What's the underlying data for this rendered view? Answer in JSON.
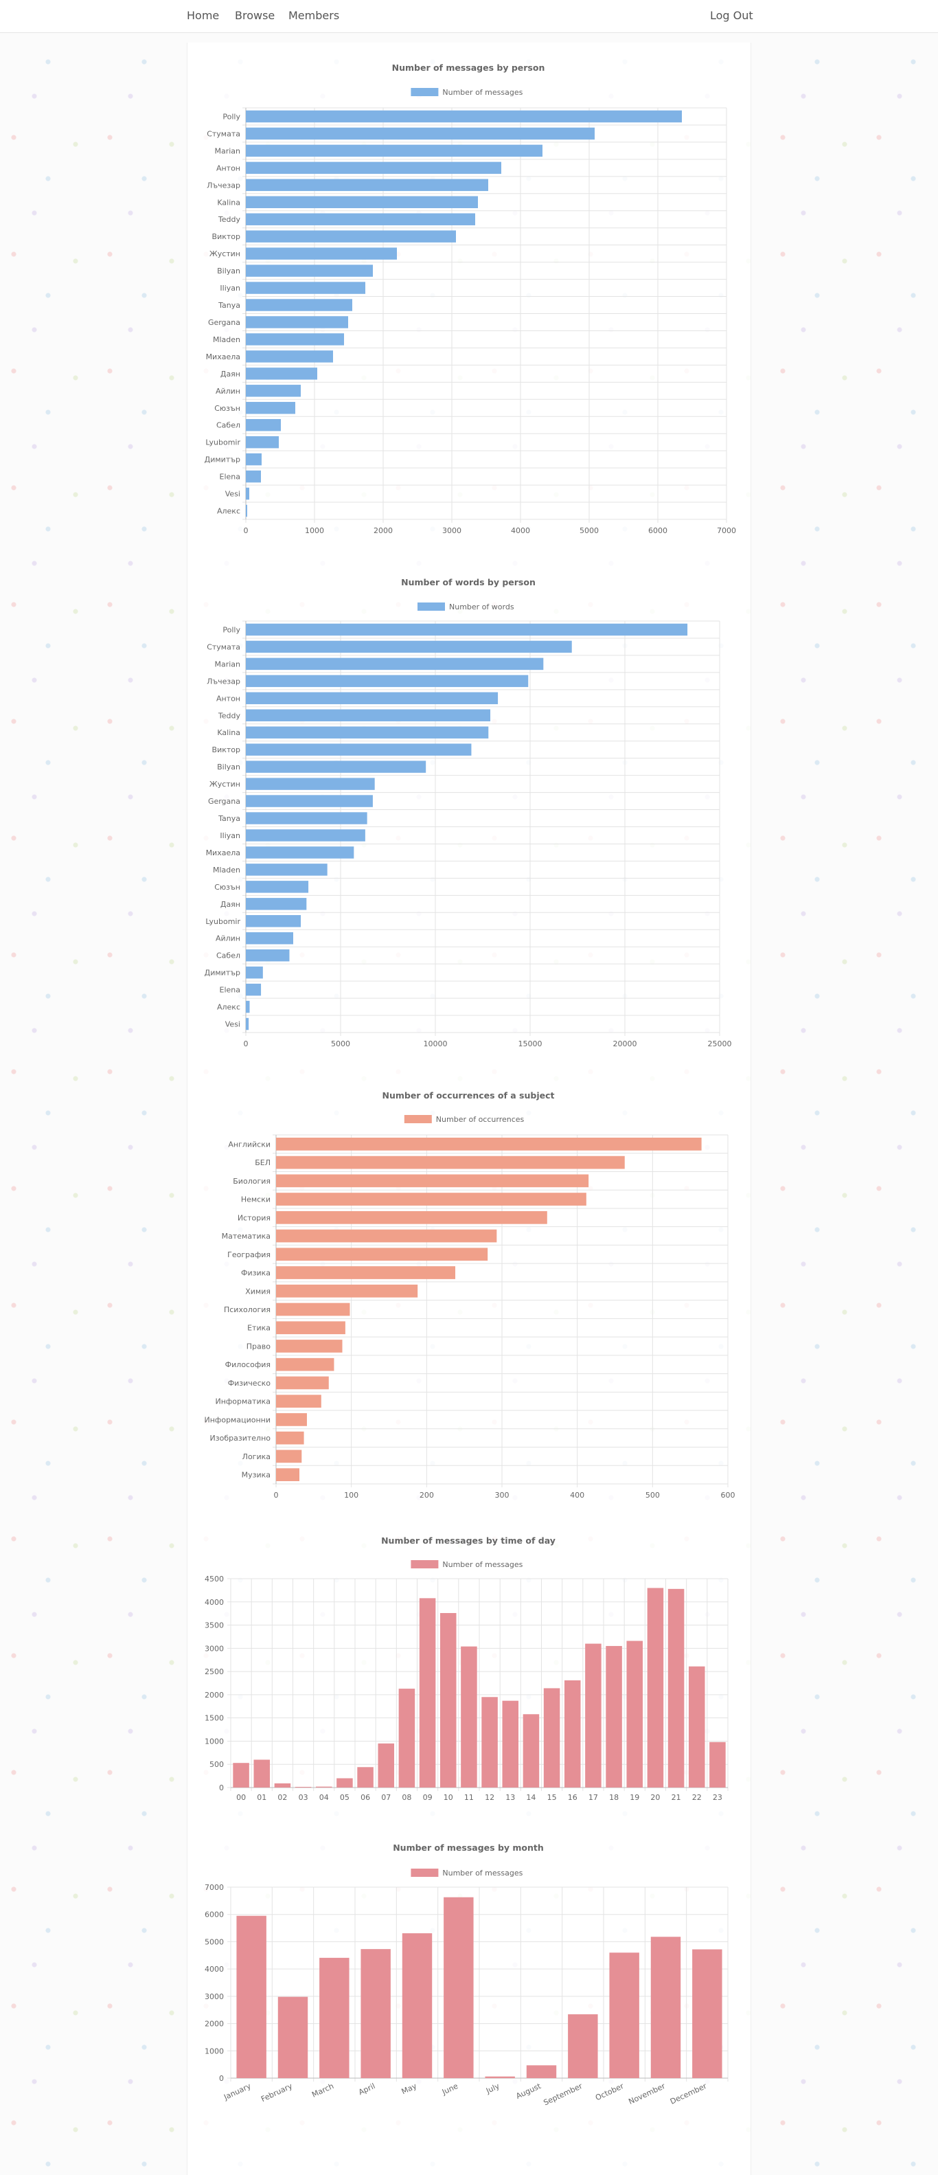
{
  "nav": {
    "home": "Home",
    "browse": "Browse",
    "members": "Members",
    "logout": "Log Out"
  },
  "colors": {
    "blue": "#7fb2e5",
    "salmon": "#f0a08a",
    "pink": "#e58f95"
  },
  "chart_data": [
    {
      "type": "bar",
      "orientation": "horizontal",
      "title": "Number of messages by person",
      "categories": [
        "Polly",
        "Стумата",
        "Marian",
        "Антон",
        "Лъчезар",
        "Kalina",
        "Teddy",
        "Виктор",
        "Жустин",
        "Bilyan",
        "Iliyan",
        "Tanya",
        "Gergana",
        "Mladen",
        "Михаела",
        "Даян",
        "Айлин",
        "Сюзън",
        "Сабел",
        "Lyubomir",
        "Димитър",
        "Elena",
        "Vesi",
        "Алекс"
      ],
      "series": [
        {
          "name": "Number of messages",
          "values": [
            6350,
            5080,
            4320,
            3720,
            3530,
            3380,
            3340,
            3060,
            2200,
            1850,
            1740,
            1550,
            1490,
            1430,
            1270,
            1040,
            800,
            720,
            510,
            480,
            230,
            220,
            50,
            20
          ]
        }
      ],
      "xlim": [
        0,
        7000
      ],
      "xticks": [
        "0",
        "1000",
        "2000",
        "3000",
        "4000",
        "5000",
        "6000",
        "7000"
      ],
      "color": "#7fb2e5"
    },
    {
      "type": "bar",
      "orientation": "horizontal",
      "title": "Number of words by person",
      "categories": [
        "Polly",
        "Стумата",
        "Marian",
        "Лъчезар",
        "Антон",
        "Teddy",
        "Kalina",
        "Виктор",
        "Bilyan",
        "Жустин",
        "Gergana",
        "Tanya",
        "Iliyan",
        "Михаела",
        "Mladen",
        "Сюзън",
        "Даян",
        "Lyubomir",
        "Айлин",
        "Сабел",
        "Димитър",
        "Elena",
        "Алекс",
        "Vesi"
      ],
      "series": [
        {
          "name": "Number of words",
          "values": [
            23300,
            17200,
            15700,
            14900,
            13300,
            12900,
            12800,
            11900,
            9500,
            6800,
            6700,
            6400,
            6300,
            5700,
            4300,
            3300,
            3200,
            2900,
            2500,
            2300,
            900,
            800,
            200,
            150
          ]
        }
      ],
      "xlim": [
        0,
        25000
      ],
      "xticks": [
        "0",
        "5000",
        "10000",
        "15000",
        "20000",
        "25000"
      ],
      "color": "#7fb2e5"
    },
    {
      "type": "bar",
      "orientation": "horizontal",
      "title": "Number of occurrences of a subject",
      "categories": [
        "Английски",
        "БЕЛ",
        "Биология",
        "Немски",
        "История",
        "Математика",
        "География",
        "Физика",
        "Химия",
        "Психология",
        "Етика",
        "Право",
        "Философия",
        "Физическо",
        "Информатика",
        "Информационни",
        "Изобразително",
        "Логика",
        "Музика"
      ],
      "series": [
        {
          "name": "Number of occurrences",
          "values": [
            565,
            463,
            415,
            412,
            360,
            293,
            281,
            238,
            188,
            98,
            92,
            88,
            77,
            70,
            60,
            41,
            37,
            34,
            31
          ]
        }
      ],
      "xlim": [
        0,
        600
      ],
      "xticks": [
        "0",
        "100",
        "200",
        "300",
        "400",
        "500",
        "600"
      ],
      "color": "#f0a08a"
    },
    {
      "type": "bar",
      "orientation": "vertical",
      "title": "Number of messages by time of day",
      "categories": [
        "00",
        "01",
        "02",
        "03",
        "04",
        "05",
        "06",
        "07",
        "08",
        "09",
        "10",
        "11",
        "12",
        "13",
        "14",
        "15",
        "16",
        "17",
        "18",
        "19",
        "20",
        "21",
        "22",
        "23"
      ],
      "series": [
        {
          "name": "Number of messages",
          "values": [
            530,
            600,
            90,
            10,
            20,
            200,
            440,
            950,
            2130,
            4080,
            3760,
            3040,
            1950,
            1870,
            1580,
            2140,
            2310,
            3100,
            3050,
            3160,
            4300,
            4280,
            2610,
            980
          ]
        }
      ],
      "ylim": [
        0,
        4500
      ],
      "yticks": [
        "0",
        "500",
        "1000",
        "1500",
        "2000",
        "2500",
        "3000",
        "3500",
        "4000",
        "4500"
      ],
      "color": "#e58f95"
    },
    {
      "type": "bar",
      "orientation": "vertical",
      "title": "Number of messages by month",
      "categories": [
        "January",
        "February",
        "March",
        "April",
        "May",
        "June",
        "July",
        "August",
        "September",
        "October",
        "November",
        "December"
      ],
      "series": [
        {
          "name": "Number of messages",
          "values": [
            5950,
            2980,
            4410,
            4730,
            5310,
            6630,
            60,
            470,
            2340,
            4600,
            5180,
            4720
          ]
        }
      ],
      "ylim": [
        0,
        7000
      ],
      "yticks": [
        "0",
        "1000",
        "2000",
        "3000",
        "4000",
        "5000",
        "6000",
        "7000"
      ],
      "color": "#e58f95"
    }
  ]
}
